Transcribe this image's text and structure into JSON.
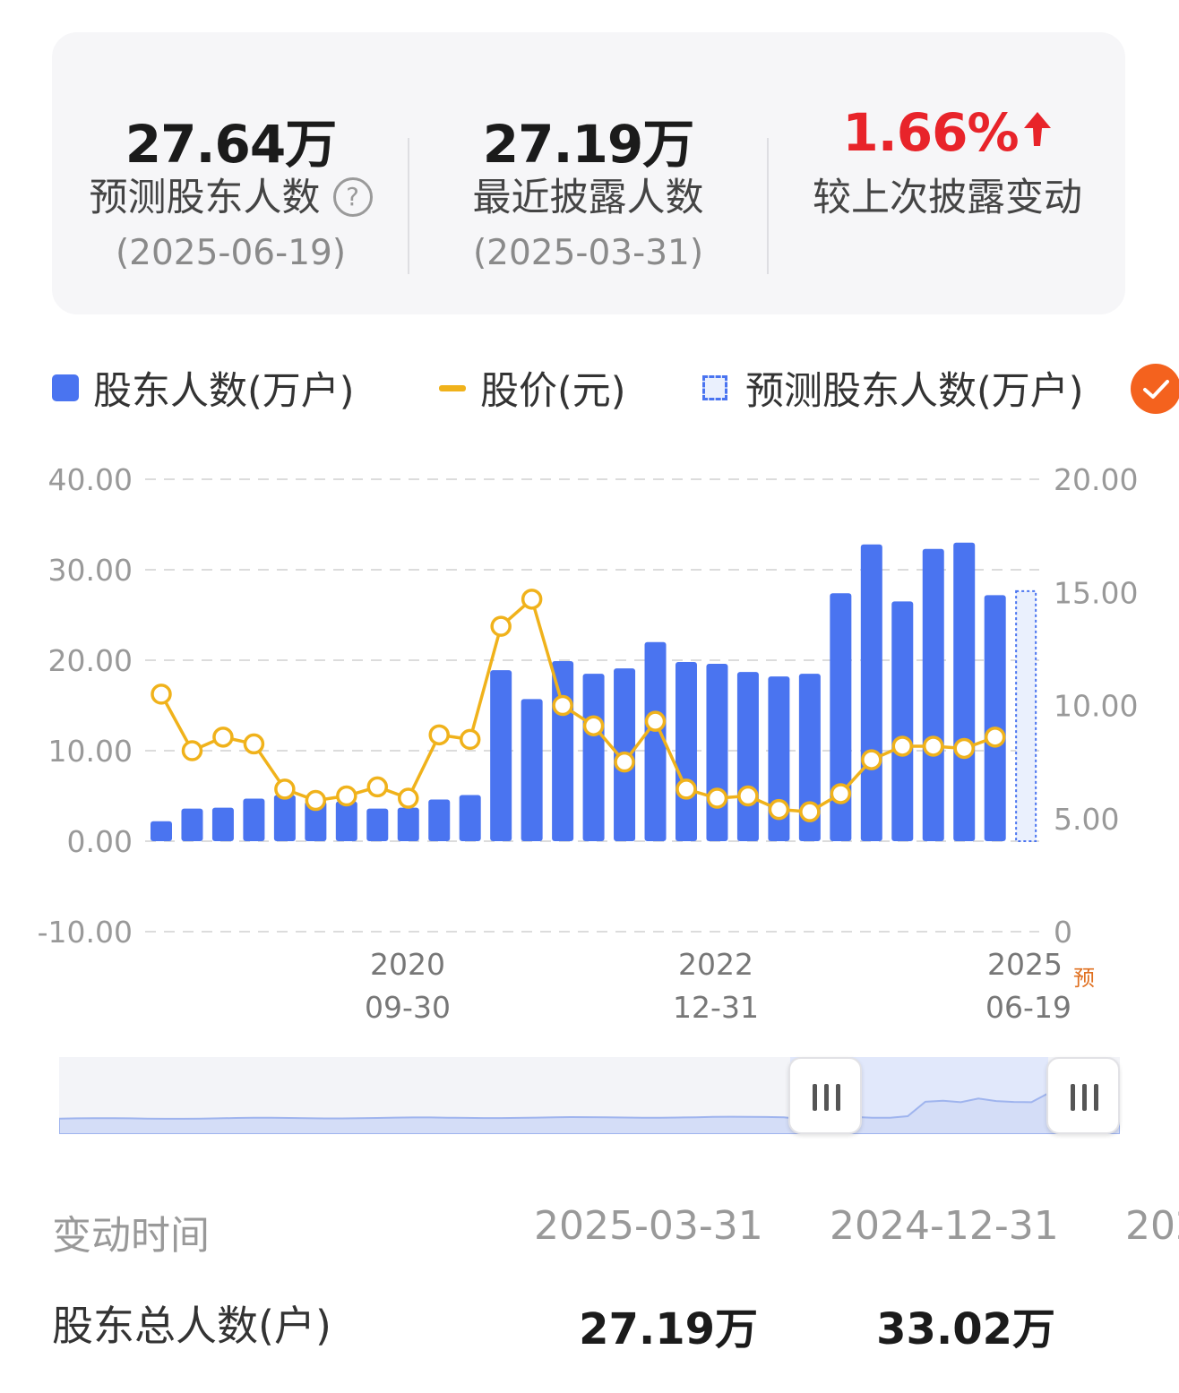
{
  "summary": {
    "forecast": {
      "value": "27.64万",
      "label": "预测股东人数",
      "date": "(2025-06-19)"
    },
    "latest": {
      "value": "27.19万",
      "label": "最近披露人数",
      "date": "(2025-03-31)"
    },
    "change": {
      "value": "1.66%",
      "label": "较上次披露变动"
    }
  },
  "legend": {
    "holders": "股东人数(万户)",
    "price": "股价(元)",
    "forecast": "预测股东人数(万户)"
  },
  "colors": {
    "bar": "#4a74f0",
    "line": "#f0b21b",
    "up": "#e8242a",
    "accent": "#f4621e"
  },
  "chart_data": {
    "type": "bar",
    "left_ticks": [
      "40.00",
      "30.00",
      "20.00",
      "10.00",
      "0.00",
      "-10.00"
    ],
    "right_ticks": [
      "20.00",
      "15.00",
      "10.00",
      "5.00",
      "0"
    ],
    "x_labels": [
      {
        "year": "2020",
        "date": "09-30"
      },
      {
        "year": "2022",
        "date": "12-31"
      },
      {
        "year": "2025",
        "date": "06-19",
        "tag": "预"
      }
    ],
    "y_left_range": [
      -10,
      40
    ],
    "y_right_range": [
      0,
      20
    ],
    "series": [
      {
        "name": "股东人数(万户)",
        "type": "bar",
        "axis": "left",
        "values": [
          2.2,
          3.6,
          3.7,
          4.7,
          5.1,
          4.4,
          4.4,
          3.6,
          3.7,
          4.6,
          5.1,
          18.9,
          15.7,
          19.9,
          18.5,
          19.1,
          22.0,
          19.8,
          19.6,
          18.7,
          18.2,
          18.5,
          27.4,
          32.8,
          26.5,
          32.3,
          33.0,
          27.19
        ]
      },
      {
        "name": "股价(元)",
        "type": "line",
        "axis": "right",
        "values": [
          10.5,
          8.0,
          8.6,
          8.3,
          6.3,
          5.8,
          6.0,
          6.4,
          5.9,
          8.7,
          8.5,
          13.5,
          14.7,
          10.0,
          9.1,
          7.5,
          9.3,
          6.3,
          5.9,
          6.0,
          5.4,
          5.3,
          6.1,
          7.6,
          8.2,
          8.2,
          8.1,
          8.6
        ]
      },
      {
        "name": "预测股东人数(万户)",
        "type": "bar",
        "axis": "left",
        "dashed": true,
        "values": [
          27.64
        ]
      }
    ],
    "grid": true,
    "legend_position": "top"
  },
  "table": {
    "header_label": "变动时间",
    "dates": [
      "2025-03-31",
      "2024-12-31",
      "202"
    ],
    "row_label": "股东总人数(户)",
    "row_values": [
      "27.19万",
      "33.02万"
    ]
  }
}
